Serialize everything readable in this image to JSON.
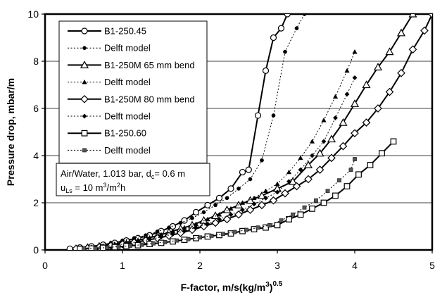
{
  "chart_data": {
    "type": "scatter",
    "xlabel": "F-factor,  m/s(kg/m³)⁰·⁵",
    "xlabel_parts": [
      "F-factor,  m/s(kg/m",
      "3",
      ")",
      "0.5"
    ],
    "ylabel": "Pressure drop, mbar/m",
    "xlim": [
      0,
      5
    ],
    "ylim": [
      0,
      10
    ],
    "xticks": [
      0,
      1,
      2,
      3,
      4,
      5
    ],
    "xtick_labels": [
      "0",
      "1",
      "2",
      "3",
      "4",
      "5"
    ],
    "yticks": [
      0,
      2,
      4,
      6,
      8,
      10
    ],
    "ytick_labels": [
      "0",
      "2",
      "4",
      "6",
      "8",
      "10"
    ],
    "grid": "horizontal",
    "legend_position": "top-left",
    "annotation": {
      "line1_prefix": "Air/Water, 1.013 bar, d",
      "line1_sub": "c",
      "line1_suffix": "= 0.6 m",
      "line2_prefix": "u",
      "line2_sub": "Ls",
      "line2_mid": " = 10 m",
      "line2_sup1": "3",
      "line2_mid2": "/m",
      "line2_sup2": "2",
      "line2_suffix": "h"
    },
    "series": [
      {
        "name": "B1-250.45",
        "line": "solid",
        "marker": "circle-open",
        "x": [
          0.32,
          0.45,
          0.6,
          0.75,
          0.9,
          1.05,
          1.2,
          1.35,
          1.5,
          1.65,
          1.8,
          1.95,
          2.1,
          2.25,
          2.4,
          2.55,
          2.63,
          2.75,
          2.85,
          2.95,
          3.05,
          3.13
        ],
        "y": [
          0.05,
          0.1,
          0.15,
          0.22,
          0.3,
          0.4,
          0.5,
          0.62,
          0.8,
          1.0,
          1.25,
          1.6,
          1.9,
          2.2,
          2.6,
          3.3,
          3.4,
          5.7,
          7.6,
          9.0,
          9.4,
          10.0
        ]
      },
      {
        "name": "Delft model",
        "line": "dotted",
        "marker": "circle-filled",
        "x": [
          0.4,
          0.55,
          0.7,
          0.85,
          1.0,
          1.15,
          1.3,
          1.45,
          1.6,
          1.75,
          1.9,
          2.05,
          2.2,
          2.35,
          2.5,
          2.65,
          2.8,
          2.95,
          3.1,
          3.25,
          3.35
        ],
        "y": [
          0.1,
          0.15,
          0.2,
          0.3,
          0.4,
          0.5,
          0.62,
          0.78,
          0.95,
          1.15,
          1.35,
          1.6,
          1.9,
          2.2,
          2.6,
          3.0,
          3.8,
          5.7,
          8.4,
          9.4,
          10.0
        ]
      },
      {
        "name": "B1-250M 65 mm bend",
        "line": "solid",
        "marker": "triangle-open",
        "x": [
          0.4,
          0.55,
          0.7,
          0.85,
          1.0,
          1.15,
          1.3,
          1.45,
          1.6,
          1.75,
          1.9,
          2.05,
          2.2,
          2.35,
          2.5,
          2.65,
          2.8,
          3.0,
          3.2,
          3.4,
          3.55,
          3.7,
          3.85,
          4.0,
          4.15,
          4.3,
          4.45,
          4.6,
          4.75
        ],
        "y": [
          0.05,
          0.1,
          0.15,
          0.22,
          0.3,
          0.38,
          0.48,
          0.6,
          0.75,
          0.9,
          1.05,
          1.25,
          1.45,
          1.7,
          1.9,
          2.1,
          2.3,
          2.6,
          2.9,
          3.6,
          4.1,
          4.7,
          5.4,
          6.2,
          7.0,
          7.75,
          8.4,
          9.2,
          10.0
        ]
      },
      {
        "name": "Delft model",
        "line": "dotted",
        "marker": "triangle-filled",
        "x": [
          0.45,
          0.6,
          0.75,
          0.9,
          1.05,
          1.2,
          1.35,
          1.5,
          1.65,
          1.8,
          1.95,
          2.1,
          2.25,
          2.4,
          2.55,
          2.7,
          2.85,
          3.0,
          3.15,
          3.3,
          3.45,
          3.6,
          3.75,
          3.9,
          4.0
        ],
        "y": [
          0.08,
          0.12,
          0.18,
          0.25,
          0.33,
          0.42,
          0.52,
          0.65,
          0.8,
          0.95,
          1.1,
          1.3,
          1.5,
          1.75,
          2.0,
          2.2,
          2.5,
          2.8,
          3.3,
          3.9,
          4.6,
          5.5,
          6.5,
          7.6,
          8.4
        ]
      },
      {
        "name": "B1-250M 80 mm bend",
        "line": "solid",
        "marker": "diamond-open",
        "x": [
          0.4,
          0.55,
          0.7,
          0.85,
          1.0,
          1.15,
          1.3,
          1.45,
          1.6,
          1.75,
          1.9,
          2.05,
          2.2,
          2.35,
          2.5,
          2.65,
          2.8,
          2.95,
          3.1,
          3.25,
          3.4,
          3.55,
          3.7,
          3.85,
          4.0,
          4.15,
          4.3,
          4.45,
          4.6,
          4.75,
          4.9,
          5.0
        ],
        "y": [
          0.05,
          0.08,
          0.12,
          0.18,
          0.24,
          0.32,
          0.4,
          0.5,
          0.6,
          0.72,
          0.85,
          1.0,
          1.15,
          1.3,
          1.5,
          1.7,
          1.9,
          2.1,
          2.4,
          2.7,
          3.0,
          3.4,
          3.9,
          4.4,
          4.95,
          5.4,
          6.0,
          6.7,
          7.5,
          8.5,
          9.3,
          10.0
        ]
      },
      {
        "name": "Delft model",
        "line": "dotted",
        "marker": "diamond-filled",
        "x": [
          0.45,
          0.6,
          0.75,
          0.9,
          1.05,
          1.2,
          1.35,
          1.5,
          1.65,
          1.8,
          1.95,
          2.1,
          2.25,
          2.4,
          2.55,
          2.7,
          2.85,
          3.0,
          3.15,
          3.3,
          3.45,
          3.6,
          3.75,
          3.9,
          4.0
        ],
        "y": [
          0.07,
          0.1,
          0.15,
          0.2,
          0.27,
          0.35,
          0.44,
          0.55,
          0.67,
          0.8,
          0.95,
          1.1,
          1.3,
          1.5,
          1.7,
          1.95,
          2.2,
          2.45,
          2.9,
          3.4,
          4.0,
          4.6,
          5.6,
          6.6,
          7.3
        ]
      },
      {
        "name": "B1-250.60",
        "line": "solid",
        "marker": "square-open",
        "x": [
          0.45,
          0.6,
          0.75,
          0.9,
          1.05,
          1.2,
          1.35,
          1.5,
          1.65,
          1.8,
          1.95,
          2.1,
          2.25,
          2.4,
          2.55,
          2.7,
          2.85,
          3.0,
          3.15,
          3.3,
          3.45,
          3.6,
          3.75,
          3.9,
          4.05,
          4.2,
          4.35,
          4.5
        ],
        "y": [
          0.04,
          0.06,
          0.09,
          0.12,
          0.16,
          0.2,
          0.25,
          0.3,
          0.36,
          0.43,
          0.5,
          0.57,
          0.63,
          0.7,
          0.8,
          0.88,
          0.95,
          1.05,
          1.3,
          1.5,
          1.75,
          2.0,
          2.3,
          2.7,
          3.2,
          3.6,
          4.1,
          4.6
        ]
      },
      {
        "name": "Delft model",
        "line": "dotted",
        "marker": "square-filled",
        "x": [
          0.5,
          0.65,
          0.8,
          0.95,
          1.1,
          1.25,
          1.4,
          1.55,
          1.7,
          1.85,
          2.0,
          2.15,
          2.3,
          2.45,
          2.6,
          2.75,
          2.9,
          3.05,
          3.2,
          3.35,
          3.5,
          3.65,
          3.8,
          3.95,
          4.0
        ],
        "y": [
          0.05,
          0.07,
          0.1,
          0.14,
          0.18,
          0.22,
          0.28,
          0.33,
          0.4,
          0.46,
          0.53,
          0.6,
          0.68,
          0.76,
          0.85,
          0.95,
          1.05,
          1.25,
          1.5,
          1.8,
          2.1,
          2.5,
          2.95,
          3.4,
          3.85
        ]
      }
    ]
  }
}
